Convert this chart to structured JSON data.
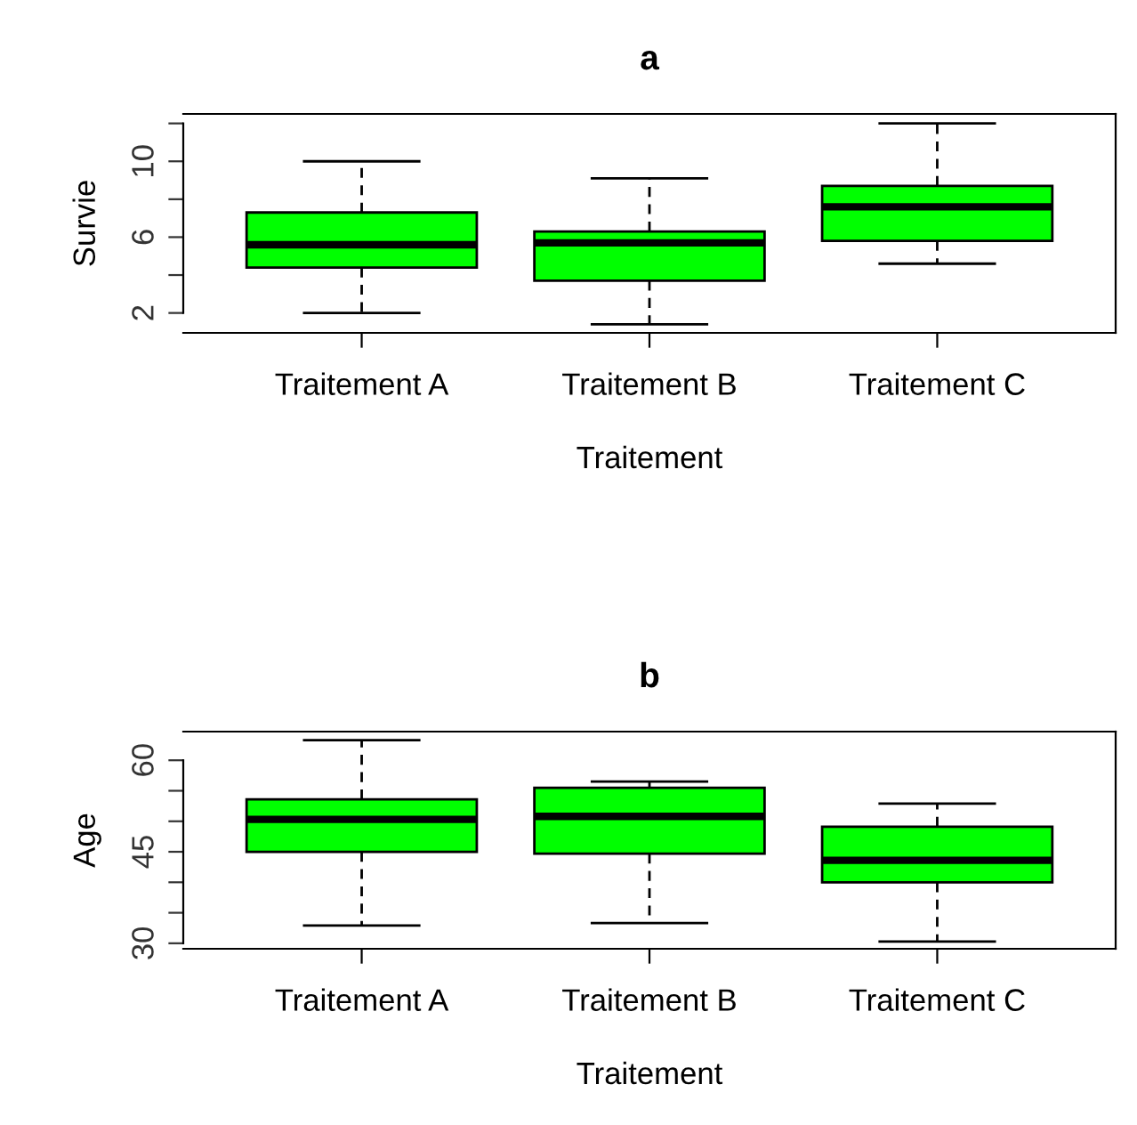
{
  "chart_data": [
    {
      "type": "box",
      "title": "a",
      "xlabel": "Traitement",
      "ylabel": "Survie",
      "categories": [
        "Traitement A",
        "Traitement B",
        "Traitement C"
      ],
      "color": "#00ff00",
      "ylim": [
        0.95,
        12.5
      ],
      "yticks": [
        2,
        {
          "value": 4,
          "label": null
        },
        6,
        {
          "value": 8,
          "label": null
        },
        10,
        {
          "value": 12,
          "label": null
        }
      ],
      "boxes": [
        {
          "low": 2,
          "q1": 4.4,
          "median": 5.6,
          "q3": 7.3,
          "high": 10
        },
        {
          "low": 1.4,
          "q1": 3.7,
          "median": 5.7,
          "q3": 6.3,
          "high": 9.1
        },
        {
          "low": 4.6,
          "q1": 5.8,
          "median": 7.6,
          "q3": 8.7,
          "high": 12
        }
      ]
    },
    {
      "type": "box",
      "title": "b",
      "xlabel": "Traitement",
      "ylabel": "Age",
      "categories": [
        "Traitement A",
        "Traitement B",
        "Traitement C"
      ],
      "color": "#00ff00",
      "ylim": [
        29.1,
        64.7
      ],
      "yticks": [
        30,
        {
          "value": 35,
          "label": null
        },
        {
          "value": 40,
          "label": null
        },
        45,
        {
          "value": 50,
          "label": null
        },
        {
          "value": 55,
          "label": null
        },
        60
      ],
      "boxes": [
        {
          "low": 32.9,
          "q1": 45,
          "median": 50.3,
          "q3": 53.6,
          "high": 63.3
        },
        {
          "low": 33.3,
          "q1": 44.7,
          "median": 50.8,
          "q3": 55.5,
          "high": 56.5
        },
        {
          "low": 30.3,
          "q1": 40,
          "median": 43.6,
          "q3": 49.1,
          "high": 52.9
        }
      ]
    }
  ]
}
